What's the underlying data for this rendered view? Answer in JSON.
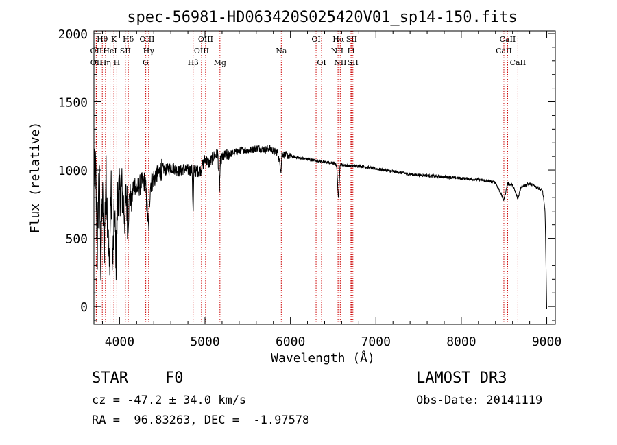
{
  "chart_data": {
    "type": "line",
    "title": "spec-56981-HD063420S025420V01_sp14-150.fits",
    "xlabel": "Wavelength (Å)",
    "ylabel": "Flux (relative)",
    "xlim": [
      3700,
      9100
    ],
    "ylim": [
      -130,
      2020
    ],
    "xticks": [
      4000,
      5000,
      6000,
      7000,
      8000,
      9000
    ],
    "yticks": [
      0,
      500,
      1000,
      1500,
      2000
    ],
    "xtick_labels": [
      "4000",
      "5000",
      "6000",
      "7000",
      "8000",
      "9000"
    ],
    "ytick_labels": [
      "0",
      "500",
      "1000",
      "1500",
      "2000"
    ],
    "series": [
      {
        "name": "spectrum",
        "x": [
          3700,
          3720,
          3740,
          3760,
          3780,
          3800,
          3820,
          3840,
          3860,
          3880,
          3900,
          3920,
          3940,
          3960,
          3980,
          4000,
          4020,
          4040,
          4060,
          4080,
          4100,
          4120,
          4140,
          4160,
          4180,
          4200,
          4250,
          4300,
          4340,
          4360,
          4400,
          4450,
          4500,
          4550,
          4600,
          4650,
          4700,
          4750,
          4800,
          4850,
          4861,
          4870,
          4900,
          4950,
          5000,
          5050,
          5100,
          5150,
          5170,
          5180,
          5200,
          5250,
          5300,
          5350,
          5400,
          5450,
          5500,
          5550,
          5600,
          5650,
          5700,
          5750,
          5800,
          5850,
          5890,
          5900,
          5950,
          6000,
          6100,
          6200,
          6300,
          6400,
          6500,
          6540,
          6563,
          6580,
          6600,
          6700,
          6800,
          7000,
          7200,
          7400,
          7600,
          7800,
          8000,
          8200,
          8400,
          8498,
          8542,
          8600,
          8662,
          8700,
          8800,
          8900,
          8950,
          8980,
          9000
        ],
        "values": [
          950,
          1000,
          380,
          1060,
          320,
          820,
          400,
          980,
          650,
          250,
          900,
          300,
          700,
          350,
          860,
          820,
          900,
          780,
          680,
          820,
          600,
          860,
          740,
          880,
          900,
          860,
          900,
          920,
          560,
          900,
          940,
          970,
          1010,
          1000,
          1020,
          1010,
          990,
          1010,
          1000,
          1000,
          650,
          1000,
          990,
          1000,
          1080,
          1050,
          1100,
          1120,
          870,
          1060,
          1090,
          1110,
          1120,
          1130,
          1140,
          1150,
          1140,
          1150,
          1160,
          1160,
          1150,
          1160,
          1140,
          1130,
          1000,
          1120,
          1110,
          1100,
          1090,
          1080,
          1070,
          1060,
          1050,
          1040,
          780,
          1040,
          1040,
          1030,
          1030,
          1010,
          990,
          970,
          960,
          950,
          940,
          930,
          910,
          780,
          900,
          890,
          790,
          880,
          900,
          870,
          850,
          700,
          -20
        ]
      }
    ],
    "lines": [
      {
        "name": "OII",
        "x": 3727,
        "row": 2
      },
      {
        "name": "OII",
        "x": 3729,
        "row": 3
      },
      {
        "name": "Hθ",
        "x": 3798,
        "row": 1
      },
      {
        "name": "Hη",
        "x": 3835,
        "row": 3
      },
      {
        "name": "HeI",
        "x": 3889,
        "row": 2
      },
      {
        "name": "K",
        "x": 3934,
        "row": 1
      },
      {
        "name": "H",
        "x": 3968,
        "row": 3
      },
      {
        "name": "SII",
        "x": 4068,
        "row": 2
      },
      {
        "name": "Hδ",
        "x": 4102,
        "row": 1
      },
      {
        "name": "G",
        "x": 4305,
        "row": 3
      },
      {
        "name": "OIII",
        "x": 4321,
        "row": 1
      },
      {
        "name": "Hγ",
        "x": 4340,
        "row": 2
      },
      {
        "name": "Hβ",
        "x": 4861,
        "row": 3
      },
      {
        "name": "OIII",
        "x": 4959,
        "row": 2
      },
      {
        "name": "OIII",
        "x": 5007,
        "row": 1
      },
      {
        "name": "Mg",
        "x": 5175,
        "row": 3
      },
      {
        "name": "Na",
        "x": 5893,
        "row": 2
      },
      {
        "name": "OI",
        "x": 6300,
        "row": 1
      },
      {
        "name": "OI",
        "x": 6364,
        "row": 3
      },
      {
        "name": "NII",
        "x": 6548,
        "row": 2
      },
      {
        "name": "Hα",
        "x": 6563,
        "row": 1
      },
      {
        "name": "NII",
        "x": 6583,
        "row": 3
      },
      {
        "name": "Li",
        "x": 6708,
        "row": 2
      },
      {
        "name": "SII",
        "x": 6716,
        "row": 1
      },
      {
        "name": "SII",
        "x": 6731,
        "row": 3
      },
      {
        "name": "CaII",
        "x": 8498,
        "row": 2
      },
      {
        "name": "CaII",
        "x": 8542,
        "row": 1
      },
      {
        "name": "CaII",
        "x": 8662,
        "row": 3
      }
    ]
  },
  "info": {
    "object_type": "STAR",
    "subclass": "F0",
    "survey": "LAMOST DR3",
    "redshift": "cz = -47.2 ± 34.0 km/s",
    "obs_date": "Obs-Date: 20141119",
    "coords": "RA =  96.83263, DEC =  -1.97578"
  },
  "colors": {
    "axis": "#000000",
    "spectrum": "#000000",
    "line_marker": "#cc0000"
  }
}
